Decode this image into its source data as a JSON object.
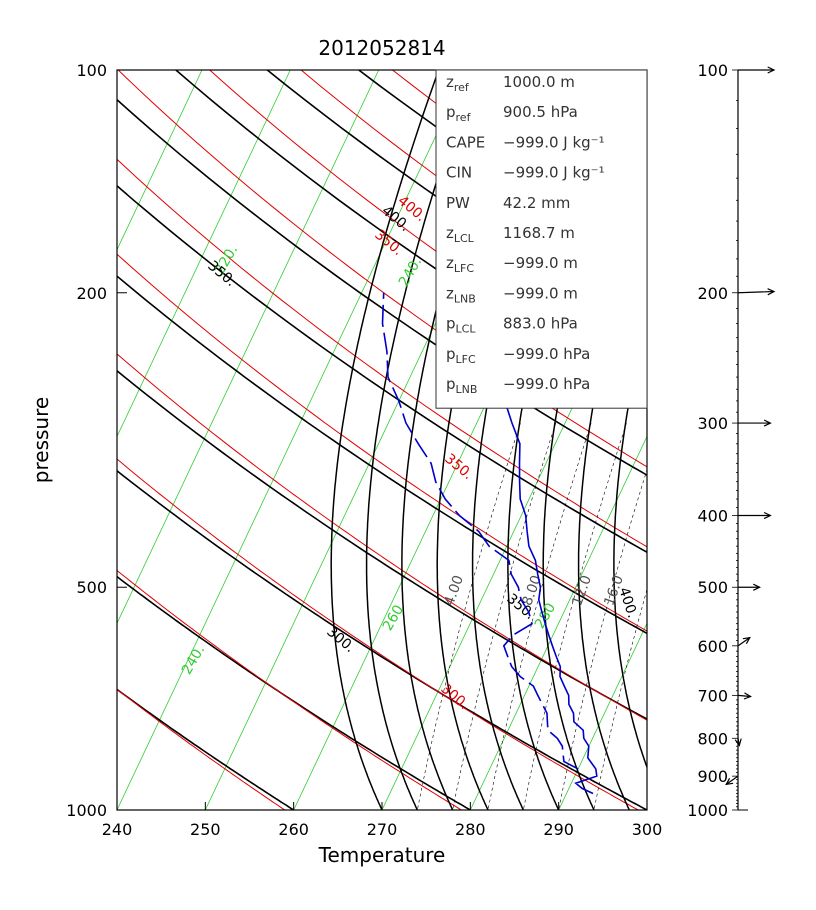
{
  "chart_data": {
    "type": "skew-t",
    "title": "2012052814",
    "xlabel": "Temperature",
    "ylabel": "pressure",
    "xlim": [
      240,
      300
    ],
    "ylim": [
      1000,
      100
    ],
    "x_ticks": [
      "240",
      "250",
      "260",
      "270",
      "280",
      "290",
      "300"
    ],
    "y_ticks": [
      {
        "p": 100,
        "label": "100"
      },
      {
        "p": 200,
        "label": "200"
      },
      {
        "p": 500,
        "label": "500"
      },
      {
        "p": 1000,
        "label": "1000"
      }
    ],
    "isotherm_labels": [
      {
        "label": "220.",
        "temp": 220,
        "p": 165
      },
      {
        "label": "240.",
        "temp": 240,
        "p": 170
      },
      {
        "label": "260",
        "temp": 260,
        "p": 540
      },
      {
        "label": "280",
        "temp": 280,
        "p": 540
      },
      {
        "label": "240.",
        "temp": 240,
        "p": 640
      }
    ],
    "dry_adiabat_labels": [
      {
        "label": "400.",
        "theta": 400,
        "p": 150
      },
      {
        "label": "350.",
        "theta": 350,
        "p": 345
      },
      {
        "label": "300.",
        "theta": 300,
        "p": 680
      }
    ],
    "moist_adiabat_labels": [
      {
        "label": "400.",
        "p": 153
      },
      {
        "label": "350.",
        "p": 182
      },
      {
        "label": "350.",
        "p": 540
      },
      {
        "label": "300.",
        "p": 580
      },
      {
        "label": "400.",
        "p": 530
      }
    ],
    "mixing_ratio_labels": [
      {
        "label": "4.00",
        "p": 520
      },
      {
        "label": "8.00",
        "p": 520
      },
      {
        "label": "12.0",
        "p": 520
      },
      {
        "label": "16.0",
        "p": 520
      }
    ],
    "temperature_profile": [
      {
        "p": 950,
        "t": 293.0
      },
      {
        "p": 935,
        "t": 291.5
      },
      {
        "p": 920,
        "t": 290.5
      },
      {
        "p": 900,
        "t": 292.5
      },
      {
        "p": 880,
        "t": 292.0
      },
      {
        "p": 850,
        "t": 290.5
      },
      {
        "p": 820,
        "t": 290.0
      },
      {
        "p": 800,
        "t": 289.0
      },
      {
        "p": 780,
        "t": 288.5
      },
      {
        "p": 760,
        "t": 287.0
      },
      {
        "p": 740,
        "t": 286.5
      },
      {
        "p": 720,
        "t": 285.5
      },
      {
        "p": 700,
        "t": 285.0
      },
      {
        "p": 680,
        "t": 284.0
      },
      {
        "p": 660,
        "t": 283.0
      },
      {
        "p": 640,
        "t": 282.5
      },
      {
        "p": 620,
        "t": 281.5
      },
      {
        "p": 600,
        "t": 280.5
      },
      {
        "p": 580,
        "t": 279.5
      },
      {
        "p": 560,
        "t": 278.5
      },
      {
        "p": 540,
        "t": 277.5
      },
      {
        "p": 520,
        "t": 276.5
      },
      {
        "p": 500,
        "t": 276.0
      },
      {
        "p": 480,
        "t": 275.0
      },
      {
        "p": 460,
        "t": 274.0
      },
      {
        "p": 440,
        "t": 272.5
      },
      {
        "p": 420,
        "t": 271.5
      },
      {
        "p": 400,
        "t": 270.5
      },
      {
        "p": 380,
        "t": 269.0
      },
      {
        "p": 360,
        "t": 268.0
      },
      {
        "p": 340,
        "t": 267.0
      },
      {
        "p": 320,
        "t": 266.0
      },
      {
        "p": 300,
        "t": 264.0
      },
      {
        "p": 280,
        "t": 262.0
      },
      {
        "p": 260,
        "t": 259.5
      },
      {
        "p": 240,
        "t": 257.0
      },
      {
        "p": 220,
        "t": 254.5
      },
      {
        "p": 200,
        "t": 252.5
      },
      {
        "p": 180,
        "t": 250.0
      },
      {
        "p": 160,
        "t": 247.5
      },
      {
        "p": 150,
        "t": 246.0
      },
      {
        "p": 140,
        "t": 245.0
      },
      {
        "p": 130,
        "t": 245.5
      },
      {
        "p": 120,
        "t": 244.5
      },
      {
        "p": 110,
        "t": 243.5
      },
      {
        "p": 100,
        "t": 243.0
      }
    ],
    "dewpoint_profile": [
      {
        "p": 880,
        "t": 290.0
      },
      {
        "p": 860,
        "t": 288.0
      },
      {
        "p": 840,
        "t": 287.5
      },
      {
        "p": 820,
        "t": 287.0
      },
      {
        "p": 800,
        "t": 286.0
      },
      {
        "p": 780,
        "t": 284.5
      },
      {
        "p": 760,
        "t": 284.0
      },
      {
        "p": 740,
        "t": 283.5
      },
      {
        "p": 720,
        "t": 282.5
      },
      {
        "p": 700,
        "t": 281.5
      },
      {
        "p": 680,
        "t": 280.5
      },
      {
        "p": 660,
        "t": 278.5
      },
      {
        "p": 640,
        "t": 277.0
      },
      {
        "p": 620,
        "t": 276.0
      },
      {
        "p": 600,
        "t": 275.0
      },
      {
        "p": 580,
        "t": 275.5
      },
      {
        "p": 560,
        "t": 277.0
      },
      {
        "p": 540,
        "t": 276.0
      },
      {
        "p": 520,
        "t": 274.5
      },
      {
        "p": 500,
        "t": 273.5
      },
      {
        "p": 480,
        "t": 272.0
      },
      {
        "p": 460,
        "t": 271.0
      },
      {
        "p": 440,
        "t": 268.0
      },
      {
        "p": 420,
        "t": 266.0
      },
      {
        "p": 400,
        "t": 263.0
      },
      {
        "p": 380,
        "t": 260.5
      },
      {
        "p": 360,
        "t": 258.5
      },
      {
        "p": 340,
        "t": 257.0
      },
      {
        "p": 320,
        "t": 254.5
      },
      {
        "p": 300,
        "t": 252.0
      },
      {
        "p": 280,
        "t": 250.0
      },
      {
        "p": 260,
        "t": 247.5
      },
      {
        "p": 240,
        "t": 246.0
      },
      {
        "p": 220,
        "t": 244.0
      },
      {
        "p": 200,
        "t": 242.5
      }
    ],
    "info_box": [
      {
        "base": "z",
        "sub": "ref",
        "value": "1000.0 m"
      },
      {
        "base": "p",
        "sub": "ref",
        "value": "900.5 hPa"
      },
      {
        "base": "CAPE",
        "sub": "",
        "value": "−999.0 J kg⁻¹"
      },
      {
        "base": "CIN",
        "sub": "",
        "value": "−999.0 J kg⁻¹"
      },
      {
        "base": "PW",
        "sub": "",
        "value": "42.2 mm"
      },
      {
        "base": "z",
        "sub": "LCL",
        "value": "1168.7 m"
      },
      {
        "base": "z",
        "sub": "LFC",
        "value": "−999.0 m"
      },
      {
        "base": "z",
        "sub": "LNB",
        "value": "−999.0 m"
      },
      {
        "base": "p",
        "sub": "LCL",
        "value": "883.0 hPa"
      },
      {
        "base": "p",
        "sub": "LFC",
        "value": "−999.0 hPa"
      },
      {
        "base": "p",
        "sub": "LNB",
        "value": "−999.0 hPa"
      }
    ],
    "wind_axis": {
      "levels": [
        {
          "p": 100,
          "label": "100"
        },
        {
          "p": 200,
          "label": "200"
        },
        {
          "p": 300,
          "label": "300"
        },
        {
          "p": 400,
          "label": "400"
        },
        {
          "p": 500,
          "label": "500"
        },
        {
          "p": 600,
          "label": "600"
        },
        {
          "p": 700,
          "label": "700"
        },
        {
          "p": 800,
          "label": "800"
        },
        {
          "p": 900,
          "label": "900"
        },
        {
          "p": 1000,
          "label": "1000"
        }
      ],
      "arrows": [
        {
          "p": 100,
          "dir_deg": 0,
          "speed": 1.0
        },
        {
          "p": 200,
          "dir_deg": -2,
          "speed": 1.0
        },
        {
          "p": 300,
          "dir_deg": 0,
          "speed": 0.9
        },
        {
          "p": 400,
          "dir_deg": 0,
          "speed": 0.9
        },
        {
          "p": 500,
          "dir_deg": 0,
          "speed": 0.6
        },
        {
          "p": 600,
          "dir_deg": -35,
          "speed": 0.4
        },
        {
          "p": 700,
          "dir_deg": 5,
          "speed": 0.35
        },
        {
          "p": 800,
          "dir_deg": 80,
          "speed": 0.2
        },
        {
          "p": 900,
          "dir_deg": 145,
          "speed": 0.4
        }
      ]
    },
    "colors": {
      "isotherm": "#33cc33",
      "dry_adiabat": "#000000",
      "moist_adiabat": "#e00000",
      "mixing_ratio": "#000000",
      "profile": "#0000cc"
    }
  }
}
